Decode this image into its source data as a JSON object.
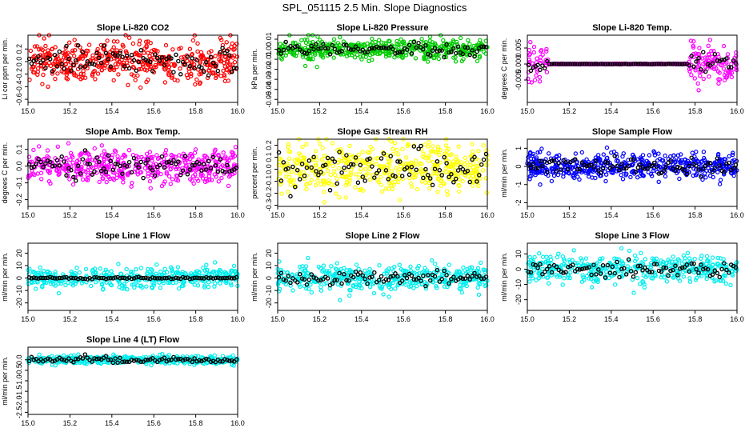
{
  "page_title": "SPL_051115  2.5 Min. Slope Diagnostics",
  "colors": {
    "black": "#000000"
  },
  "chart_data": [
    {
      "type": "scatter",
      "title": "Slope Li-820 CO2",
      "ylabel": "Li cor ppm per min.",
      "color": "#ff0000",
      "xlim": [
        15.0,
        16.0
      ],
      "ylim": [
        -0.65,
        0.42
      ],
      "yticks": [
        -0.6,
        -0.4,
        -0.2,
        0.0,
        0.2
      ],
      "ytick_labels": [
        "-0.6",
        "-0.4",
        "-0.2",
        "0.0",
        "0.2"
      ],
      "xticks": [
        15.0,
        15.2,
        15.4,
        15.6,
        15.8,
        16.0
      ],
      "xtick_labels": [
        "15.0",
        "15.2",
        "15.4",
        "15.6",
        "15.8",
        "16.0"
      ],
      "n_color_points": 480,
      "color_spread": 0.16,
      "n_black_points": 90,
      "black_spread": 0.1
    },
    {
      "type": "scatter",
      "title": "Slope Li-820 Pressure",
      "ylabel": "kPa per min.",
      "color": "#00cc00",
      "xlim": [
        15.0,
        16.0
      ],
      "ylim": [
        -0.053,
        0.014
      ],
      "yticks": [
        -0.05,
        -0.04,
        -0.03,
        -0.02,
        -0.01,
        0.0,
        0.01
      ],
      "ytick_labels": [
        "-0.05",
        "-0.04",
        "-0.03",
        "-0.02",
        "-0.01",
        "0.00",
        "0.01"
      ],
      "xticks": [
        15.0,
        15.2,
        15.4,
        15.6,
        15.8,
        16.0
      ],
      "xtick_labels": [
        "15.0",
        "15.2",
        "15.4",
        "15.6",
        "15.8",
        "16.0"
      ],
      "n_color_points": 480,
      "color_spread": 0.005,
      "n_black_points": 90,
      "black_spread": 0.003
    },
    {
      "type": "scatter",
      "title": "Slope Li-820 Temp.",
      "ylabel": "degrees C per min.",
      "color": "#ff00ff",
      "xlim": [
        15.0,
        16.0
      ],
      "ylim": [
        -0.012,
        0.009
      ],
      "yticks": [
        -0.005,
        0.0,
        0.005
      ],
      "ytick_labels": [
        "-0.005",
        "0.000",
        "0.005"
      ],
      "xticks": [
        15.0,
        15.2,
        15.4,
        15.6,
        15.8,
        16.0
      ],
      "xtick_labels": [
        "15.0",
        "15.2",
        "15.4",
        "15.6",
        "15.8",
        "16.0"
      ],
      "n_color_points": 480,
      "color_spread": 0.003,
      "n_black_points": 90,
      "black_spread": 0.002
    },
    {
      "type": "scatter",
      "title": "Slope Amb. Box Temp.",
      "ylabel": "degrees C per min.",
      "color": "#ff00ff",
      "xlim": [
        15.0,
        16.0
      ],
      "ylim": [
        -0.24,
        0.16
      ],
      "yticks": [
        -0.2,
        -0.1,
        0.0,
        0.1
      ],
      "ytick_labels": [
        "-0.2",
        "-0.1",
        "0.0",
        "0.1"
      ],
      "xticks": [
        15.0,
        15.2,
        15.4,
        15.6,
        15.8,
        16.0
      ],
      "xtick_labels": [
        "15.0",
        "15.2",
        "15.4",
        "15.6",
        "15.8",
        "16.0"
      ],
      "n_color_points": 480,
      "color_spread": 0.05,
      "n_black_points": 90,
      "black_spread": 0.035
    },
    {
      "type": "scatter",
      "title": "Slope Gas Stream RH",
      "ylabel": "percent per min.",
      "color": "#ffff00",
      "xlim": [
        15.0,
        16.0
      ],
      "ylim": [
        -0.31,
        0.25
      ],
      "yticks": [
        -0.3,
        -0.2,
        -0.1,
        0.0,
        0.1,
        0.2
      ],
      "ytick_labels": [
        "-0.3",
        "-0.2",
        "-0.1",
        "0.0",
        "0.1",
        "0.2"
      ],
      "xticks": [
        15.0,
        15.2,
        15.4,
        15.6,
        15.8,
        16.0
      ],
      "xtick_labels": [
        "15.0",
        "15.2",
        "15.4",
        "15.6",
        "15.8",
        "16.0"
      ],
      "n_color_points": 480,
      "color_spread": 0.1,
      "n_black_points": 90,
      "black_spread": 0.08
    },
    {
      "type": "scatter",
      "title": "Slope Sample Flow",
      "ylabel": "ml/min per min.",
      "color": "#0000ff",
      "xlim": [
        15.0,
        16.0
      ],
      "ylim": [
        -2.2,
        1.5
      ],
      "yticks": [
        -2,
        -1,
        0,
        1
      ],
      "ytick_labels": [
        "-2",
        "-1",
        "0",
        "1"
      ],
      "xticks": [
        15.0,
        15.2,
        15.4,
        15.6,
        15.8,
        16.0
      ],
      "xtick_labels": [
        "15.0",
        "15.2",
        "15.4",
        "15.6",
        "15.8",
        "16.0"
      ],
      "n_color_points": 480,
      "color_spread": 0.35,
      "n_black_points": 90,
      "black_spread": 0.2
    },
    {
      "type": "scatter",
      "title": "Slope Line 1 Flow",
      "ylabel": "ml/min per min.",
      "color": "#00eeee",
      "xlim": [
        15.0,
        16.0
      ],
      "ylim": [
        -26,
        28
      ],
      "yticks": [
        -20,
        -10,
        0,
        10,
        20
      ],
      "ytick_labels": [
        "-20",
        "-10",
        "0",
        "10",
        "20"
      ],
      "xticks": [
        15.0,
        15.2,
        15.4,
        15.6,
        15.8,
        16.0
      ],
      "xtick_labels": [
        "15.0",
        "15.2",
        "15.4",
        "15.6",
        "15.8",
        "16.0"
      ],
      "n_color_points": 420,
      "color_spread": 4,
      "n_black_points": 90,
      "black_spread": 0.4
    },
    {
      "type": "scatter",
      "title": "Slope Line 2 Flow",
      "ylabel": "ml/min per min.",
      "color": "#00eeee",
      "xlim": [
        15.0,
        16.0
      ],
      "ylim": [
        -26,
        28
      ],
      "yticks": [
        -20,
        -10,
        0,
        10,
        20
      ],
      "ytick_labels": [
        "-20",
        "-10",
        "0",
        "10",
        "20"
      ],
      "xticks": [
        15.0,
        15.2,
        15.4,
        15.6,
        15.8,
        16.0
      ],
      "xtick_labels": [
        "15.0",
        "15.2",
        "15.4",
        "15.6",
        "15.8",
        "16.0"
      ],
      "n_color_points": 420,
      "color_spread": 5,
      "n_black_points": 90,
      "black_spread": 2.5
    },
    {
      "type": "scatter",
      "title": "Slope Line 3 Flow",
      "ylabel": "ml/min per min.",
      "color": "#00eeee",
      "xlim": [
        15.0,
        16.0
      ],
      "ylim": [
        -27,
        17
      ],
      "yticks": [
        -20,
        -10,
        0,
        10
      ],
      "ytick_labels": [
        "-20",
        "-10",
        "0",
        "10"
      ],
      "xticks": [
        15.0,
        15.2,
        15.4,
        15.6,
        15.8,
        16.0
      ],
      "xtick_labels": [
        "15.0",
        "15.2",
        "15.4",
        "15.6",
        "15.8",
        "16.0"
      ],
      "n_color_points": 420,
      "color_spread": 4.5,
      "n_black_points": 90,
      "black_spread": 2.5
    },
    {
      "type": "scatter",
      "title": "Slope Line 4 (LT) Flow",
      "ylabel": "ml/min per min.",
      "color": "#00eeee",
      "xlim": [
        15.0,
        16.0
      ],
      "ylim": [
        -2.6,
        0.6
      ],
      "yticks": [
        -2.5,
        -2.0,
        -1.5,
        -1.0,
        -0.5,
        0.0
      ],
      "ytick_labels": [
        "-2.5",
        "-2.0",
        "-1.5",
        "-1.0",
        "-0.5",
        "0.0"
      ],
      "xticks": [
        15.0,
        15.2,
        15.4,
        15.6,
        15.8,
        16.0
      ],
      "xtick_labels": [
        "15.0",
        "15.2",
        "15.4",
        "15.6",
        "15.8",
        "16.0"
      ],
      "n_color_points": 420,
      "color_spread": 0.1,
      "n_black_points": 90,
      "black_spread": 0.07
    }
  ]
}
